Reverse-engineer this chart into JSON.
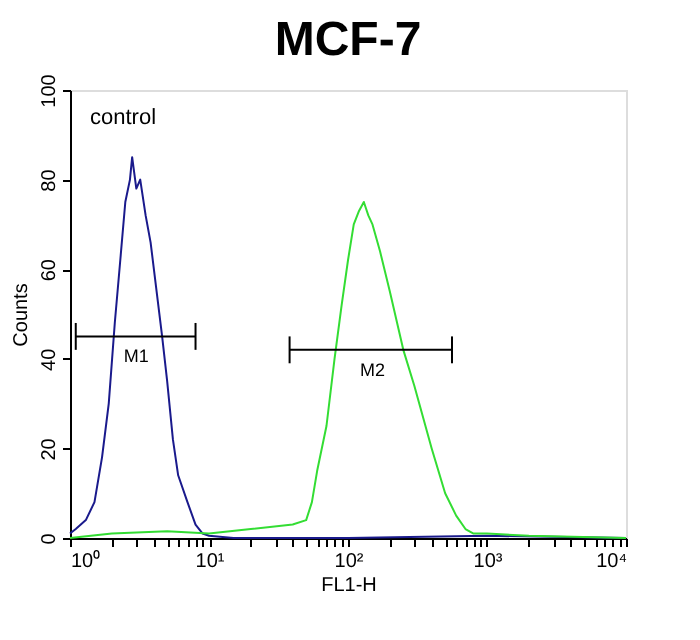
{
  "chart_data": {
    "type": "line",
    "title": "MCF-7",
    "xlabel": "FL1-H",
    "ylabel": "Counts",
    "log": "x",
    "marker": "none",
    "xlim": [
      1,
      10000
    ],
    "xticks": [
      {
        "value": 1,
        "label": "10⁰"
      },
      {
        "value": 2,
        "label": null
      },
      {
        "value": 3,
        "label": null
      },
      {
        "value": 4,
        "label": null
      },
      {
        "value": 5,
        "label": null
      },
      {
        "value": 6,
        "label": null
      },
      {
        "value": 7,
        "label": null
      },
      {
        "value": 8,
        "label": null
      },
      {
        "value": 9,
        "label": null
      },
      {
        "value": 10,
        "label": "10¹"
      },
      {
        "value": 20,
        "label": null
      },
      {
        "value": 30,
        "label": null
      },
      {
        "value": 40,
        "label": null
      },
      {
        "value": 50,
        "label": null
      },
      {
        "value": 60,
        "label": null
      },
      {
        "value": 70,
        "label": null
      },
      {
        "value": 80,
        "label": null
      },
      {
        "value": 90,
        "label": null
      },
      {
        "value": 100,
        "label": "10²"
      },
      {
        "value": 200,
        "label": null
      },
      {
        "value": 300,
        "label": null
      },
      {
        "value": 400,
        "label": null
      },
      {
        "value": 500,
        "label": null
      },
      {
        "value": 600,
        "label": null
      },
      {
        "value": 700,
        "label": null
      },
      {
        "value": 800,
        "label": null
      },
      {
        "value": 900,
        "label": null
      },
      {
        "value": 1000,
        "label": "10³"
      },
      {
        "value": 2000,
        "label": null
      },
      {
        "value": 3000,
        "label": null
      },
      {
        "value": 4000,
        "label": null
      },
      {
        "value": 5000,
        "label": null
      },
      {
        "value": 6000,
        "label": null
      },
      {
        "value": 7000,
        "label": null
      },
      {
        "value": 8000,
        "label": null
      },
      {
        "value": 9000,
        "label": null
      },
      {
        "value": 10000,
        "label": "10⁴"
      }
    ],
    "ylim": [
      0,
      100
    ],
    "yticks": [
      0,
      20,
      40,
      60,
      80,
      100
    ],
    "series": [
      {
        "color": "#1a1a8c",
        "x": [
          1.0,
          1.1,
          1.3,
          1.5,
          1.7,
          1.9,
          2.1,
          2.3,
          2.5,
          2.7,
          2.8,
          3.0,
          3.2,
          3.5,
          3.8,
          4.2,
          4.6,
          5.0,
          5.5,
          6.0,
          7.0,
          8.0,
          9.0,
          10,
          15,
          100,
          1000,
          10000
        ],
        "values": [
          1,
          2,
          4,
          8,
          18,
          30,
          48,
          62,
          75,
          80,
          85,
          78,
          80,
          72,
          66,
          55,
          45,
          35,
          22,
          14,
          8,
          3,
          1,
          0.5,
          0,
          0,
          0.5,
          0
        ]
      },
      {
        "color": "#33dd33",
        "x": [
          1,
          2,
          5,
          10,
          20,
          40,
          50,
          55,
          60,
          70,
          80,
          90,
          100,
          110,
          120,
          130,
          140,
          150,
          170,
          200,
          250,
          300,
          400,
          500,
          600,
          700,
          800,
          1000,
          2000,
          10000
        ],
        "values": [
          0,
          1,
          1.5,
          1,
          2,
          3,
          4,
          8,
          15,
          25,
          40,
          52,
          62,
          70,
          73,
          75,
          72,
          70,
          64,
          55,
          42,
          34,
          20,
          10,
          5,
          2,
          1,
          1,
          0.5,
          0
        ]
      },
      {
        "color": "#000000",
        "x": [
          1.1,
          8
        ],
        "values": [
          45,
          45
        ],
        "errors": [
          3,
          3
        ]
      },
      {
        "color": "#000000",
        "x": [
          38,
          560
        ],
        "values": [
          42,
          42
        ],
        "errors": [
          3,
          3
        ]
      }
    ],
    "annotations": [
      "control",
      {
        "text": "M1",
        "x": 3,
        "y": 45
      },
      {
        "text": "M2",
        "x": 150,
        "y": 42
      }
    ]
  }
}
